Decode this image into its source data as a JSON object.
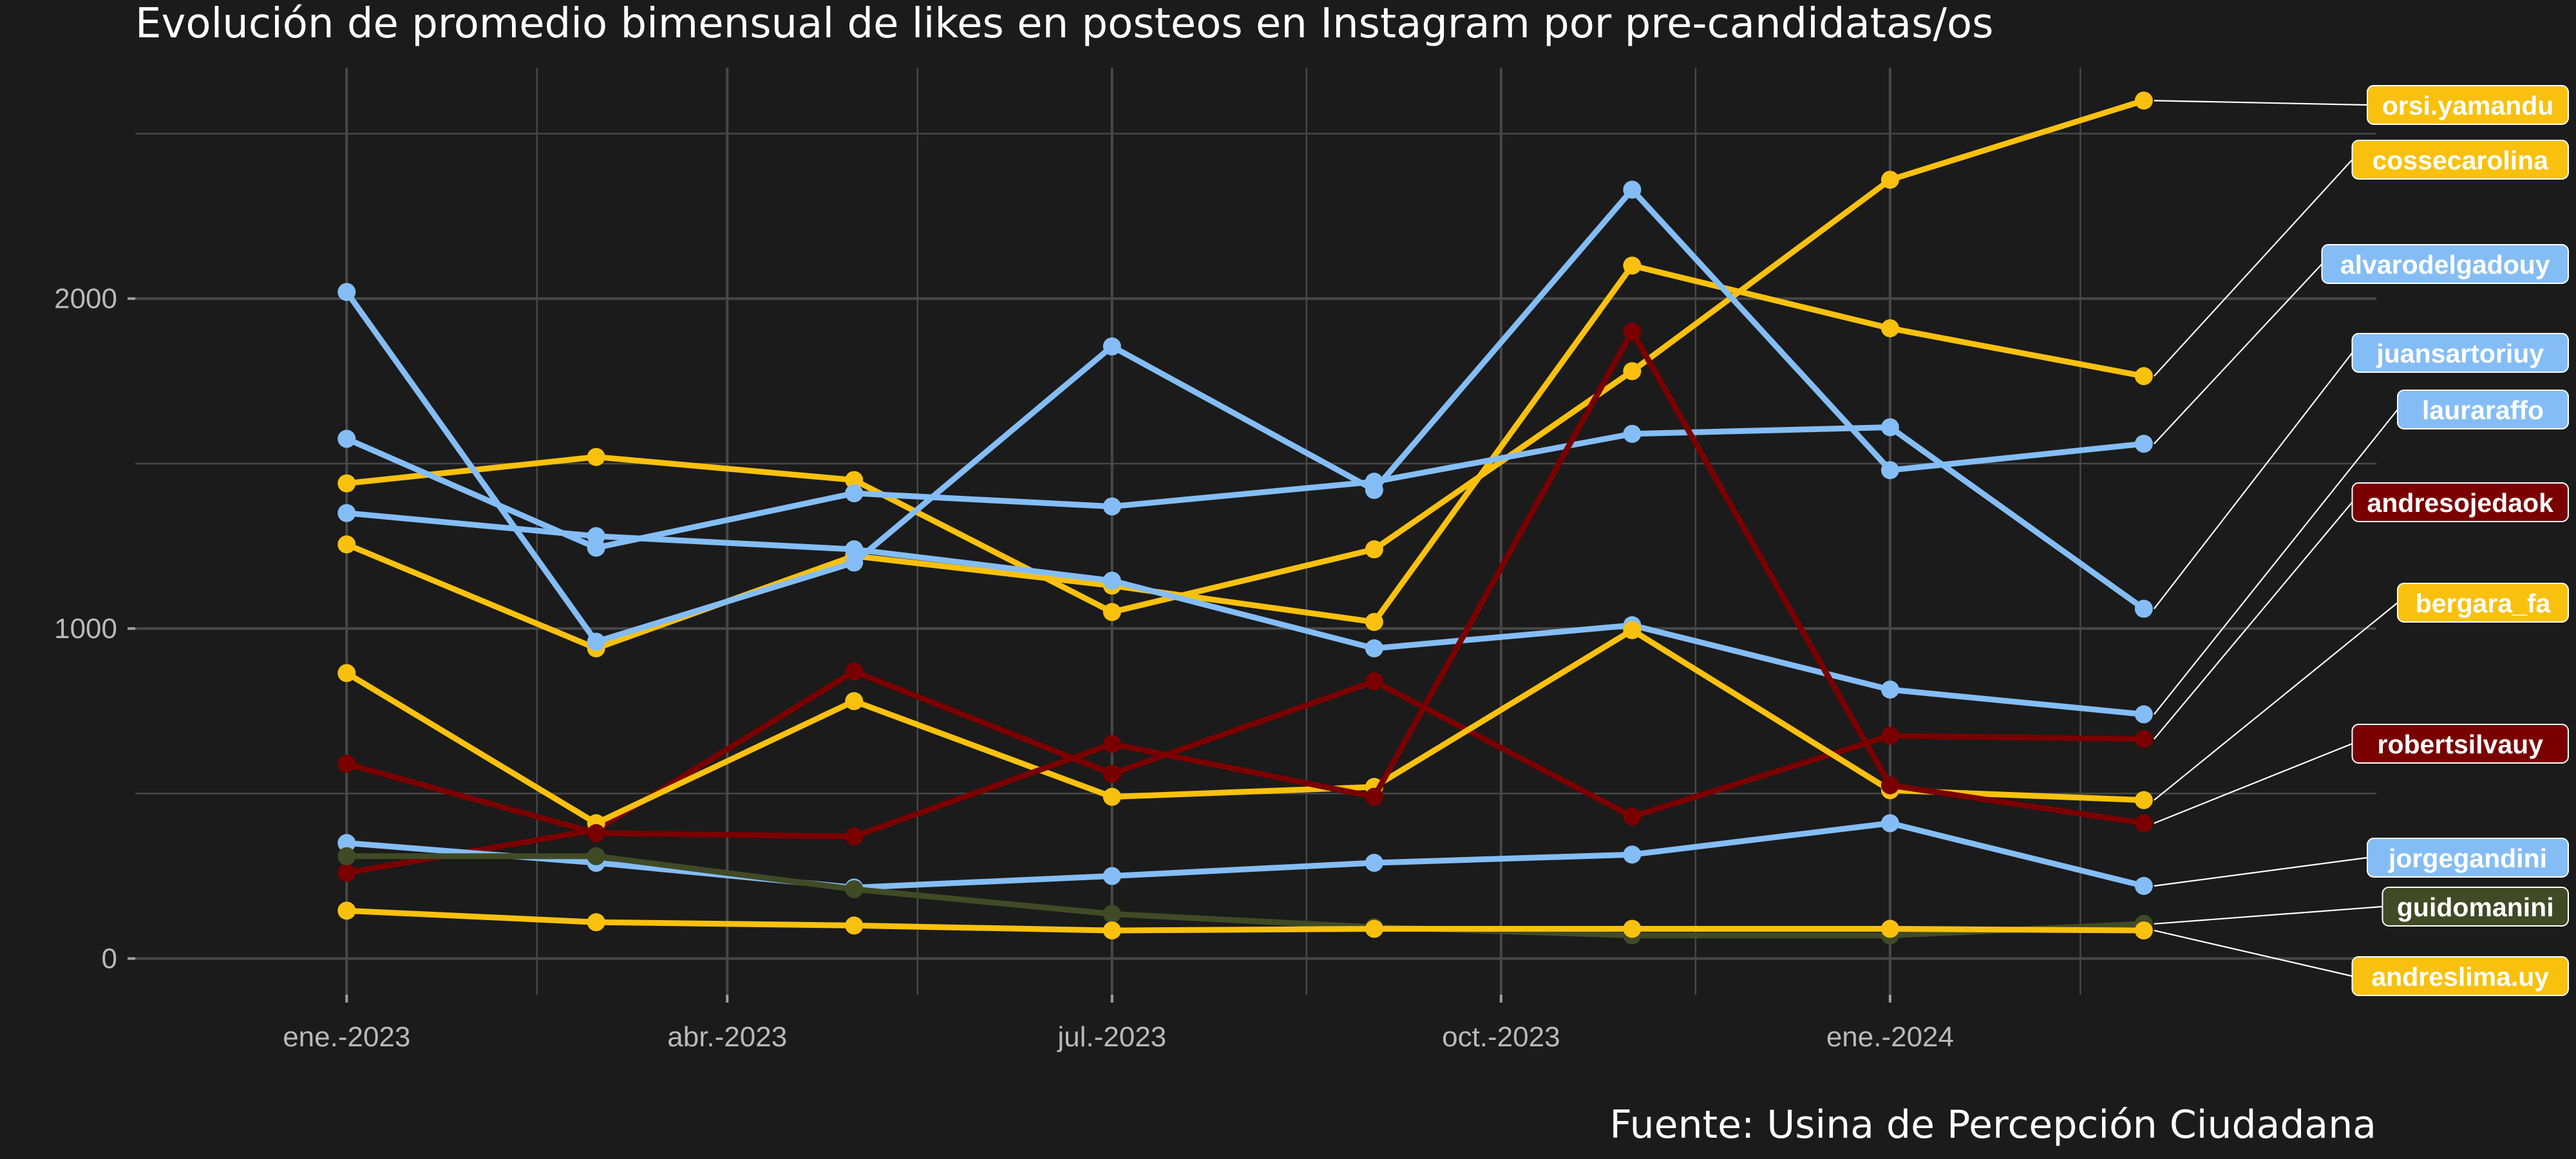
{
  "chart_data": {
    "type": "line",
    "title": "Evolución de promedio bimensual de likes en posteos en Instagram por pre-candidatas/os",
    "caption": "Fuente: Usina de Percepción Ciudadana",
    "xlabel": "",
    "ylabel": "",
    "x": [
      "2023-01-01",
      "2023-03-01",
      "2023-05-01",
      "2023-07-01",
      "2023-09-01",
      "2023-11-01",
      "2024-01-01",
      "2024-03-01"
    ],
    "x_ticks": [
      {
        "date": "2023-01-01",
        "label": "ene.-2023"
      },
      {
        "date": "2023-04-01",
        "label": "abr.-2023"
      },
      {
        "date": "2023-07-01",
        "label": "jul.-2023"
      },
      {
        "date": "2023-10-01",
        "label": "oct.-2023"
      },
      {
        "date": "2024-01-01",
        "label": "ene.-2024"
      }
    ],
    "x_range": [
      "2022-11-12",
      "2024-04-25"
    ],
    "y_ticks": [
      0,
      1000,
      2000
    ],
    "ylim": [
      -110,
      2700
    ],
    "grid": true,
    "legend": "direct labels on right",
    "colors": {
      "blue": "#84bdf5",
      "yellow": "#f9c10e",
      "red": "#7a0000",
      "olive": "#404a25",
      "background": "#1b1b1b",
      "grid": "#474747"
    },
    "series": [
      {
        "name": "orsi.yamandu",
        "color": "#f9c10e",
        "values": [
          1440,
          1520,
          1450,
          1050,
          1240,
          1780,
          2360,
          2600
        ]
      },
      {
        "name": "cossecarolina",
        "color": "#f9c10e",
        "values": [
          1255,
          940,
          1220,
          1130,
          1020,
          2100,
          1910,
          1765
        ]
      },
      {
        "name": "alvarodelgadouy",
        "color": "#84bdf5",
        "values": [
          2020,
          960,
          1200,
          1855,
          1420,
          2330,
          1480,
          1560
        ]
      },
      {
        "name": "juansartoriuy",
        "color": "#84bdf5",
        "values": [
          1575,
          1245,
          1410,
          1370,
          1445,
          1590,
          1610,
          1060
        ]
      },
      {
        "name": "lauraraffo",
        "color": "#84bdf5",
        "values": [
          1350,
          1280,
          1240,
          1145,
          940,
          1010,
          815,
          740
        ]
      },
      {
        "name": "andresojedaok",
        "color": "#7a0000",
        "values": [
          260,
          390,
          870,
          560,
          840,
          430,
          675,
          665
        ]
      },
      {
        "name": "bergara_fa",
        "color": "#f9c10e",
        "values": [
          865,
          410,
          780,
          490,
          520,
          995,
          510,
          480
        ]
      },
      {
        "name": "robertsilvauy",
        "color": "#7a0000",
        "values": [
          590,
          380,
          370,
          650,
          490,
          1900,
          525,
          410
        ]
      },
      {
        "name": "jorgegandini",
        "color": "#84bdf5",
        "values": [
          350,
          290,
          215,
          250,
          290,
          315,
          410,
          220
        ]
      },
      {
        "name": "guidomanini",
        "color": "#404a25",
        "values": [
          310,
          310,
          210,
          135,
          95,
          70,
          70,
          105
        ]
      },
      {
        "name": "andreslima.uy",
        "color": "#f9c10e",
        "values": [
          145,
          110,
          100,
          85,
          90,
          90,
          90,
          85
        ]
      }
    ]
  }
}
